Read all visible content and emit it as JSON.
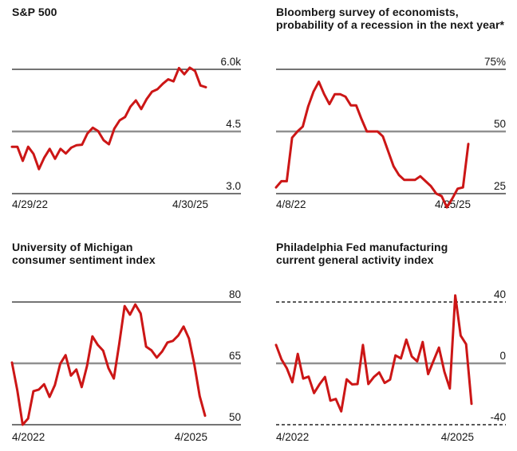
{
  "page": {
    "background": "#ffffff",
    "text_color": "#161616",
    "accent_color": "#cc1616",
    "grid_line_color": "#222222",
    "grid_emphasis_color": "#909090"
  },
  "chart_data": [
    {
      "type": "line",
      "title_lines": [
        "S&P 500",
        ""
      ],
      "x_start_label": "4/29/22",
      "x_end_label": "4/30/25",
      "legend_position": "none",
      "grid": "horizontal-only",
      "gridlines": [
        {
          "value": 6.0,
          "label": "6.0k",
          "style": "solid"
        },
        {
          "value": 4.5,
          "label": "4.5",
          "style": "emphasis"
        },
        {
          "value": 3.0,
          "label": "3.0",
          "style": "solid"
        }
      ],
      "ylim": [
        3.0,
        6.0
      ],
      "values": [
        4.13,
        4.13,
        3.79,
        4.13,
        3.96,
        3.59,
        3.87,
        4.08,
        3.84,
        4.08,
        3.97,
        4.11,
        4.17,
        4.18,
        4.45,
        4.59,
        4.51,
        4.29,
        4.19,
        4.57,
        4.77,
        4.85,
        5.1,
        5.25,
        5.04,
        5.28,
        5.46,
        5.52,
        5.65,
        5.76,
        5.71,
        6.03,
        5.88,
        6.04,
        5.96,
        5.61,
        5.57
      ]
    },
    {
      "type": "line",
      "title_lines": [
        "Bloomberg survey of economists,",
        "probability of a recession in the next year*"
      ],
      "x_start_label": "4/8/22",
      "x_end_label": "4/25/25",
      "legend_position": "none",
      "grid": "horizontal-only",
      "gridlines": [
        {
          "value": 75,
          "label": "75%",
          "style": "solid"
        },
        {
          "value": 50,
          "label": "50",
          "style": "emphasis"
        },
        {
          "value": 25,
          "label": "25",
          "style": "solid"
        }
      ],
      "ylim": [
        25,
        75
      ],
      "values": [
        27.5,
        30,
        30,
        47.5,
        50,
        52,
        60,
        66,
        70,
        65,
        61,
        65,
        65,
        64,
        60.5,
        60.5,
        55,
        50,
        50,
        50,
        48,
        42,
        36,
        32.5,
        30.5,
        30.5,
        30.5,
        32,
        30,
        28,
        25,
        24,
        19.5,
        23,
        27,
        27.5,
        45
      ]
    },
    {
      "type": "line",
      "title_lines": [
        "University of Michigan",
        "consumer sentiment index"
      ],
      "x_start_label": "4/2022",
      "x_end_label": "4/2025",
      "legend_position": "none",
      "grid": "horizontal-only",
      "gridlines": [
        {
          "value": 80,
          "label": "80",
          "style": "solid"
        },
        {
          "value": 65,
          "label": "65",
          "style": "emphasis"
        },
        {
          "value": 50,
          "label": "50",
          "style": "solid"
        }
      ],
      "ylim": [
        50,
        80
      ],
      "values": [
        65.2,
        58.4,
        50.0,
        51.5,
        58.2,
        58.6,
        59.9,
        56.8,
        59.7,
        64.9,
        67.0,
        62.0,
        63.5,
        59.2,
        64.4,
        71.6,
        69.5,
        68.1,
        63.8,
        61.3,
        69.7,
        79.0,
        76.9,
        79.4,
        77.2,
        69.1,
        68.2,
        66.4,
        67.9,
        70.1,
        70.5,
        71.8,
        74.0,
        71.1,
        64.7,
        57.0,
        52.2
      ]
    },
    {
      "type": "line",
      "title_lines": [
        "Philadelphia Fed manufacturing",
        "current general activity index"
      ],
      "x_start_label": "4/2022",
      "x_end_label": "4/2025",
      "legend_position": "none",
      "grid": "horizontal-only",
      "gridlines": [
        {
          "value": 40,
          "label": "40",
          "style": "dashed"
        },
        {
          "value": 0,
          "label": "0",
          "style": "emphasis"
        },
        {
          "value": -40,
          "label": "-40",
          "style": "dashed"
        }
      ],
      "ylim": [
        -40,
        40
      ],
      "values": [
        12,
        2.6,
        -3.3,
        -12.3,
        6.2,
        -9.9,
        -8.7,
        -19.4,
        -13.7,
        -8.9,
        -24.3,
        -23.2,
        -31.3,
        -10.4,
        -13.7,
        -13.5,
        12.0,
        -13.5,
        -9.0,
        -5.9,
        -12.8,
        -10.6,
        5.2,
        3.2,
        15.5,
        4.5,
        1.3,
        13.9,
        -7.0,
        1.7,
        10.3,
        -5.5,
        -16.4,
        44.3,
        18.1,
        12.5,
        -26.4
      ]
    }
  ]
}
